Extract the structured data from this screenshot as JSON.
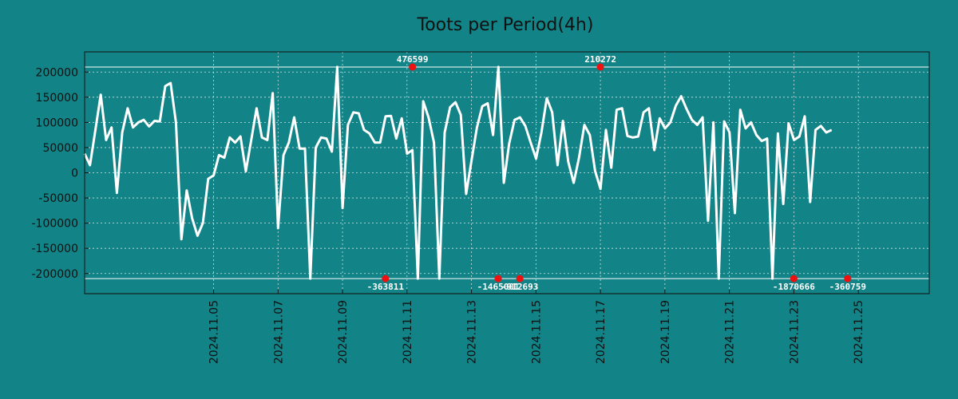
{
  "chart_data": {
    "type": "line",
    "title": "Toots per Period(4h)",
    "xlabel": "",
    "ylabel": "",
    "colors": {
      "background": "#128386",
      "line": "#ffffff",
      "grid": "#cfe3e3",
      "marker": "#ee1111",
      "axis": "#111111"
    },
    "ylim": [
      -240000,
      240000
    ],
    "xlim_days": [
      0,
      26.2
    ],
    "y_ticks": [
      200000,
      150000,
      100000,
      50000,
      0,
      -50000,
      -100000,
      -150000,
      -200000
    ],
    "x_ticks": [
      {
        "day": 4,
        "label": "2024.11.05"
      },
      {
        "day": 6,
        "label": "2024.11.07"
      },
      {
        "day": 8,
        "label": "2024.11.09"
      },
      {
        "day": 10,
        "label": "2024.11.11"
      },
      {
        "day": 12,
        "label": "2024.11.13"
      },
      {
        "day": 14,
        "label": "2024.11.15"
      },
      {
        "day": 16,
        "label": "2024.11.17"
      },
      {
        "day": 18,
        "label": "2024.11.19"
      },
      {
        "day": 20,
        "label": "2024.11.21"
      },
      {
        "day": 22,
        "label": "2024.11.23"
      },
      {
        "day": 24,
        "label": "2024.11.25"
      }
    ],
    "clip_lines": [
      210000,
      -210000
    ],
    "annotations": [
      {
        "day": 9.33,
        "y": -210000,
        "label": "-363811",
        "pos": "below"
      },
      {
        "day": 10.17,
        "y": 210000,
        "label": "476599",
        "pos": "above"
      },
      {
        "day": 12.83,
        "y": -210000,
        "label": "-1465001",
        "pos": "below"
      },
      {
        "day": 13.5,
        "y": -210000,
        "label": "-912693",
        "pos": "below"
      },
      {
        "day": 16.0,
        "y": 210000,
        "label": "210272",
        "pos": "above"
      },
      {
        "day": 22.0,
        "y": -210000,
        "label": "-1870666",
        "pos": "below"
      },
      {
        "day": 23.67,
        "y": -210000,
        "label": "-360759",
        "pos": "below"
      }
    ],
    "series": [
      {
        "name": "toots",
        "step_days": 0.1667,
        "values": [
          38000,
          15000,
          85000,
          155000,
          65000,
          90000,
          -40000,
          80000,
          128000,
          90000,
          100000,
          105000,
          92000,
          103000,
          102000,
          172000,
          178000,
          100000,
          -132000,
          -35000,
          -90000,
          -125000,
          -100000,
          -12000,
          -5000,
          35000,
          30000,
          70000,
          60000,
          72000,
          3000,
          65000,
          128000,
          70000,
          65000,
          158000,
          -110000,
          35000,
          60000,
          110000,
          48000,
          48000,
          -210000,
          50000,
          70000,
          68000,
          42000,
          210000,
          -70000,
          95000,
          120000,
          118000,
          85000,
          78000,
          60000,
          60000,
          112000,
          113000,
          68000,
          108000,
          38000,
          45000,
          -210000,
          142000,
          110000,
          60000,
          -210000,
          80000,
          130000,
          140000,
          115000,
          -42000,
          25000,
          90000,
          132000,
          138000,
          75000,
          210000,
          -20000,
          58000,
          105000,
          110000,
          93000,
          60000,
          28000,
          80000,
          148000,
          120000,
          15000,
          103000,
          22000,
          -20000,
          30000,
          95000,
          75000,
          3000,
          -32000,
          85000,
          10000,
          125000,
          128000,
          73000,
          70000,
          72000,
          120000,
          128000,
          45000,
          108000,
          88000,
          100000,
          133000,
          152000,
          127000,
          105000,
          95000,
          110000,
          -95000,
          100000,
          -210000,
          102000,
          80000,
          -80000,
          125000,
          88000,
          100000,
          75000,
          63000,
          68000,
          -210000,
          78000,
          -62000,
          98000,
          65000,
          72000,
          112000,
          -58000,
          85000,
          93000,
          80000,
          85000
        ]
      }
    ]
  }
}
